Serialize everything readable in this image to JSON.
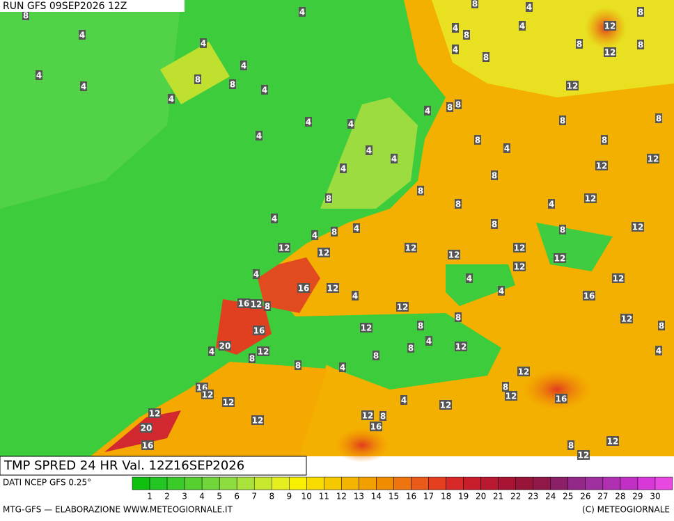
{
  "header": "RUN GFS 09SEP2026 12Z",
  "title": "TMP SPRED 24 HR Val. 12Z16SEP2026",
  "source": "DATI NCEP GFS 0.25°",
  "footer_left": "MTG-GFS — ELABORAZIONE WWW.METEOGIORNALE.IT",
  "footer_right": "(C) METEOGIORNALE",
  "colorbar": {
    "labels": [
      1,
      2,
      3,
      4,
      5,
      6,
      7,
      8,
      9,
      10,
      11,
      12,
      13,
      14,
      15,
      16,
      17,
      18,
      19,
      20,
      21,
      22,
      23,
      24,
      25,
      26,
      27,
      28,
      29,
      30
    ],
    "colors": [
      "#10c010",
      "#22c522",
      "#3acb2a",
      "#55d030",
      "#70d63a",
      "#8ddc40",
      "#a8e23a",
      "#c8e830",
      "#e6ee20",
      "#f8f000",
      "#f8dc00",
      "#f6c800",
      "#f4b400",
      "#f2a000",
      "#f08c00",
      "#ee7410",
      "#ea5a18",
      "#e44020",
      "#d82828",
      "#c81e2c",
      "#b81830",
      "#a81434",
      "#981438",
      "#901848",
      "#8c2068",
      "#942888",
      "#a030a0",
      "#b030b4",
      "#c030c4",
      "#d838d8",
      "#e848e0"
    ]
  },
  "map_labels": [
    8,
    4,
    4,
    4,
    4,
    4,
    4,
    8,
    8,
    4,
    4,
    4,
    4,
    4,
    4,
    4,
    4,
    8,
    4,
    12,
    4,
    8,
    4,
    12,
    4,
    16,
    12,
    16,
    12,
    8,
    16,
    20,
    4,
    8,
    12,
    8,
    4,
    12,
    8,
    4,
    12,
    8,
    8,
    4,
    8,
    12,
    12,
    12,
    4,
    4,
    12,
    12,
    12,
    8,
    16,
    12,
    12,
    12,
    4,
    8,
    8,
    8,
    8,
    4,
    8,
    8,
    8,
    12,
    12,
    8,
    12,
    12,
    12,
    8,
    8,
    8,
    4,
    4,
    8,
    4,
    8,
    8,
    4,
    4,
    8,
    8,
    16,
    12,
    12,
    12,
    20,
    16,
    12,
    12,
    8,
    16,
    4,
    12,
    12,
    8,
    12,
    16,
    8,
    12,
    12,
    8,
    4,
    12
  ]
}
